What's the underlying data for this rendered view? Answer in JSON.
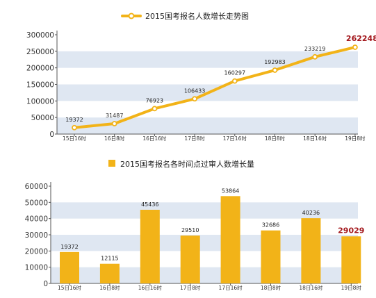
{
  "chart_data": [
    {
      "type": "line",
      "title": "2015国考报名人数增长走势图",
      "categories": [
        "15日16时",
        "16日8时",
        "16日16时",
        "17日8时",
        "17日16时",
        "18日8时",
        "18日16时",
        "19日8时"
      ],
      "series": [
        {
          "values": [
            19372,
            31487,
            76923,
            106433,
            160297,
            192983,
            233219,
            262248
          ]
        }
      ],
      "highlight": {
        "index": 7,
        "label": "262248",
        "color": "#a3171c"
      },
      "yticks": [
        "0",
        "50000",
        "100000",
        "150000",
        "200000",
        "250000",
        "300000"
      ],
      "ylim": [
        0,
        300000
      ],
      "grid": "alternating horizontal bands",
      "legend": "top-center",
      "colors": {
        "line": "#f2b318",
        "marker_fill": "#ffffff",
        "band": "#dfe7f2"
      }
    },
    {
      "type": "bar",
      "title": "2015国考报名各时间点过审人数增长量",
      "categories": [
        "15日16时",
        "16日8时",
        "16日16时",
        "17日8时",
        "17日16时",
        "18日8时",
        "18日16时",
        "19日8时"
      ],
      "series": [
        {
          "values": [
            19372,
            12115,
            45436,
            29510,
            53864,
            32686,
            40236,
            29029
          ]
        }
      ],
      "highlight": {
        "index": 7,
        "label": "29029",
        "color": "#a3171c"
      },
      "yticks": [
        "0",
        "10000",
        "20000",
        "30000",
        "40000",
        "50000",
        "60000"
      ],
      "ylim": [
        0,
        60000
      ],
      "grid": "alternating horizontal bands",
      "legend": "top-center",
      "colors": {
        "bar": "#f2b318",
        "band": "#dfe7f2"
      }
    }
  ]
}
